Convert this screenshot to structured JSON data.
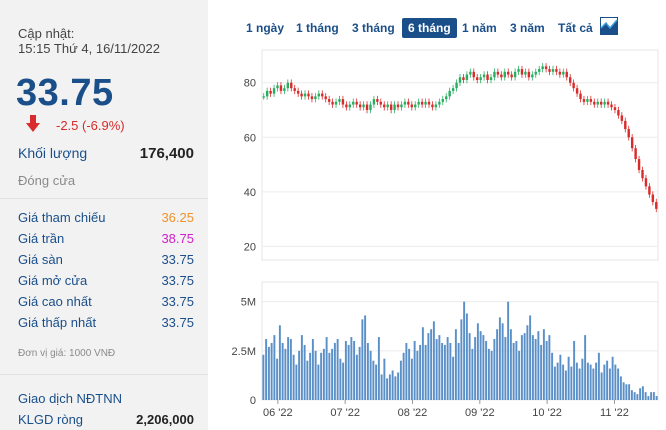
{
  "quote": {
    "updated_label": "Cập nhật:",
    "updated_time": "15:15 Thứ 4, 16/11/2022",
    "price": "33.75",
    "change": "-2.5 (-6.9%)",
    "volume_label": "Khối lượng",
    "volume_value": "176,400",
    "close_label": "Đóng cửa",
    "colors": {
      "down": "#d92b2b",
      "ref": "#f0932b",
      "ceiling": "#d020c8",
      "neutral": "#1a4f8a"
    }
  },
  "prices": [
    {
      "label": "Giá tham chiếu",
      "value": "36.25",
      "color": "#f0932b"
    },
    {
      "label": "Giá trần",
      "value": "38.75",
      "color": "#d020c8"
    },
    {
      "label": "Giá sàn",
      "value": "33.75",
      "color": "#1a4f8a"
    },
    {
      "label": "Giá mở cửa",
      "value": "33.75",
      "color": "#1a4f8a"
    },
    {
      "label": "Giá cao nhất",
      "value": "33.75",
      "color": "#1a4f8a"
    },
    {
      "label": "Giá thấp nhất",
      "value": "33.75",
      "color": "#1a4f8a"
    }
  ],
  "unit_note": "Đơn vị giá: 1000 VNĐ",
  "foreign": {
    "title": "Giao dịch NĐTNN",
    "net_label": "KLGD ròng",
    "net_value": "2,206,000"
  },
  "tabs": [
    "1 ngày",
    "1 tháng",
    "3 tháng",
    "6 tháng",
    "1 năm",
    "3 năm",
    "Tất cả"
  ],
  "active_tab": "6 tháng",
  "chart_icon": "area-chart-icon",
  "chart_data": [
    {
      "type": "candlestick",
      "title": "",
      "x_ticks": [
        "06 '22",
        "07 '22",
        "08 '22",
        "09 '22",
        "10 '22",
        "11 '22"
      ],
      "y_ticks": [
        20,
        40,
        60,
        80
      ],
      "ylim": [
        15,
        92
      ],
      "grid": true,
      "colors": {
        "up": "#27ae60",
        "down": "#d92b2b"
      },
      "close": [
        75,
        77,
        76,
        78,
        79,
        77,
        78,
        80,
        78,
        77,
        76,
        75,
        76,
        75,
        74,
        75,
        76,
        75,
        74,
        73,
        72,
        73,
        74,
        72,
        71,
        72,
        73,
        72,
        71,
        72,
        70,
        72,
        74,
        73,
        72,
        71,
        72,
        70,
        72,
        71,
        72,
        73,
        72,
        71,
        72,
        73,
        72,
        73,
        72,
        71,
        72,
        73,
        74,
        75,
        77,
        78,
        80,
        82,
        81,
        83,
        84,
        82,
        81,
        82,
        83,
        81,
        82,
        84,
        83,
        82,
        84,
        83,
        82,
        84,
        85,
        83,
        84,
        82,
        83,
        84,
        85,
        86,
        85,
        84,
        85,
        84,
        83,
        84,
        82,
        80,
        78,
        76,
        74,
        73,
        74,
        73,
        72,
        73,
        72,
        73,
        72,
        71,
        70,
        68,
        66,
        63,
        60,
        56,
        52,
        48,
        45,
        42,
        39,
        36.25,
        33.75
      ],
      "y_unit": "1000 VNĐ"
    },
    {
      "type": "bar",
      "title": "",
      "y_ticks": [
        "0",
        "2.5M",
        "5M"
      ],
      "ylim": [
        0,
        6
      ],
      "values": [
        2.3,
        3.1,
        2.7,
        2.9,
        3.3,
        2.1,
        3.8,
        2.9,
        2.6,
        3.2,
        3.1,
        2.3,
        1.8,
        2.5,
        3.3,
        2.8,
        2.0,
        2.4,
        3.1,
        2.5,
        1.8,
        2.4,
        2.6,
        3.2,
        2.4,
        2.6,
        2.9,
        3.1,
        2.1,
        1.9,
        3.0,
        2.8,
        3.2,
        3.0,
        2.3,
        2.7,
        4.1,
        4.3,
        2.9,
        2.5,
        2.0,
        1.8,
        3.2,
        1.3,
        2.1,
        1.1,
        1.3,
        1.5,
        1.2,
        1.4,
        2.0,
        2.4,
        2.9,
        2.6,
        2.1,
        3.0,
        2.5,
        2.8,
        3.7,
        2.8,
        3.4,
        3.6,
        4.0,
        3.1,
        3.3,
        2.9,
        2.8,
        3.2,
        2.9,
        2.2,
        3.6,
        2.9,
        4.1,
        5.0,
        4.4,
        3.4,
        2.6,
        3.2,
        3.9,
        3.5,
        3.3,
        3.0,
        2.6,
        2.5,
        3.1,
        3.6,
        4.2,
        3.9,
        3.2,
        5.0,
        3.6,
        2.9,
        3.0,
        2.5,
        3.3,
        3.4,
        3.8,
        4.3,
        3.3,
        3.1,
        3.5,
        2.8,
        3.6,
        3.0,
        3.3,
        2.4,
        1.7,
        1.9,
        2.3,
        1.8,
        1.5,
        2.2,
        1.7,
        3.0,
        1.9,
        1.6,
        2.1,
        3.3,
        1.9,
        1.8,
        1.6,
        1.9,
        2.4,
        1.4,
        1.8,
        2.0,
        1.6,
        2.2,
        1.8,
        1.6,
        1.2,
        0.9,
        0.8,
        0.8,
        0.5,
        0.4,
        0.3,
        0.6,
        0.7,
        0.4,
        0.2,
        0.4,
        0.4,
        0.2
      ],
      "y_unit": "shares (millions)"
    }
  ]
}
